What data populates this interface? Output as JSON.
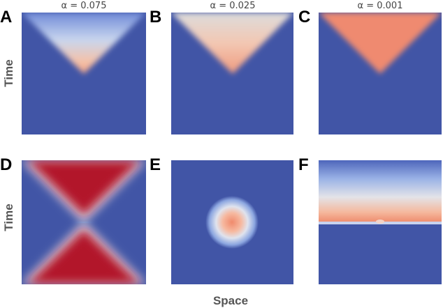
{
  "panels": [
    {
      "label": "A",
      "title": "α = 0.075"
    },
    {
      "label": "B",
      "title": "α = 0.025"
    },
    {
      "label": "C",
      "title": "α = 0.001"
    },
    {
      "label": "D"
    },
    {
      "label": "E"
    },
    {
      "label": "F"
    }
  ],
  "y_axis_label": "Time",
  "x_axis_label": "Space"
}
